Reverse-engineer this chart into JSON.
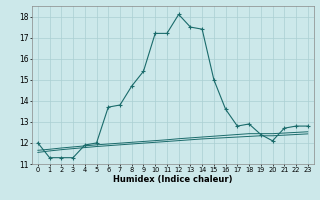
{
  "xlabel": "Humidex (Indice chaleur)",
  "bg_color": "#cce8ea",
  "grid_color": "#aacfd2",
  "line_color": "#1a6b6b",
  "x_main": [
    0,
    1,
    2,
    3,
    4,
    5,
    6,
    7,
    8,
    9,
    10,
    11,
    12,
    13,
    14,
    15,
    16,
    17,
    18,
    19,
    20,
    21,
    22,
    23
  ],
  "y_main": [
    12.0,
    11.3,
    11.3,
    11.3,
    11.9,
    12.0,
    13.7,
    13.8,
    14.7,
    15.4,
    17.2,
    17.2,
    18.1,
    17.5,
    17.4,
    15.0,
    13.6,
    12.8,
    12.9,
    12.4,
    12.1,
    12.7,
    12.8,
    12.8
  ],
  "x_flat1": [
    0,
    1,
    2,
    3,
    4,
    5,
    6,
    7,
    8,
    9,
    10,
    11,
    12,
    13,
    14,
    15,
    16,
    17,
    18,
    19,
    20,
    21,
    22,
    23
  ],
  "y_flat1": [
    11.55,
    11.62,
    11.68,
    11.73,
    11.78,
    11.83,
    11.87,
    11.91,
    11.95,
    11.99,
    12.03,
    12.07,
    12.11,
    12.15,
    12.19,
    12.22,
    12.25,
    12.28,
    12.31,
    12.34,
    12.34,
    12.37,
    12.4,
    12.43
  ],
  "x_flat2": [
    0,
    1,
    2,
    3,
    4,
    5,
    6,
    7,
    8,
    9,
    10,
    11,
    12,
    13,
    14,
    15,
    16,
    17,
    18,
    19,
    20,
    21,
    22,
    23
  ],
  "y_flat2": [
    11.65,
    11.7,
    11.76,
    11.81,
    11.86,
    11.91,
    11.95,
    11.99,
    12.03,
    12.07,
    12.11,
    12.15,
    12.2,
    12.24,
    12.28,
    12.32,
    12.36,
    12.4,
    12.44,
    12.44,
    12.44,
    12.47,
    12.5,
    12.53
  ],
  "ylim": [
    11.0,
    18.5
  ],
  "xlim": [
    -0.5,
    23.5
  ],
  "yticks": [
    11,
    12,
    13,
    14,
    15,
    16,
    17,
    18
  ],
  "xticks": [
    0,
    1,
    2,
    3,
    4,
    5,
    6,
    7,
    8,
    9,
    10,
    11,
    12,
    13,
    14,
    15,
    16,
    17,
    18,
    19,
    20,
    21,
    22,
    23
  ]
}
